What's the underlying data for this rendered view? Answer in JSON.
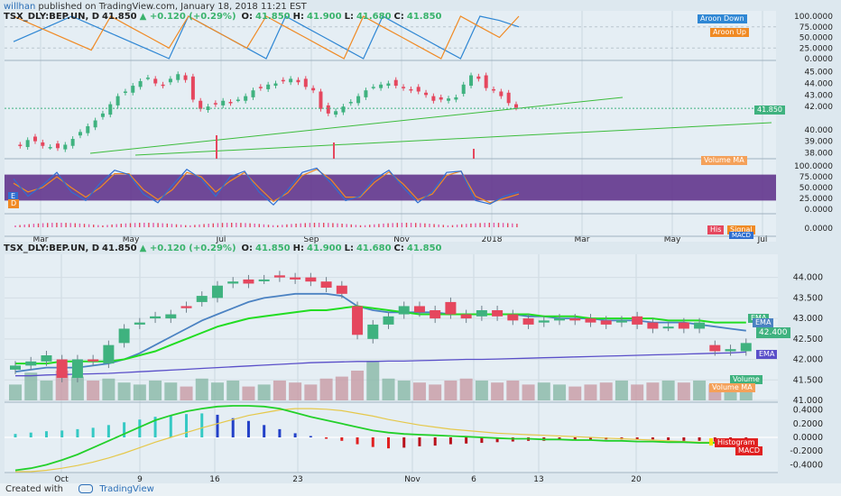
{
  "header": {
    "publisher": "willhan",
    "published_text": "published on TradingView.com, January 18, 2018 11:21 EST"
  },
  "top_panel": {
    "symbol": "TSX_DLY:BEP.UN, D",
    "price": "41.850",
    "change": "+0.120 (+0.29%)",
    "o_label": "O:",
    "o_value": "41.850",
    "h_label": "H:",
    "h_value": "41.900",
    "l_label": "L:",
    "l_value": "41.680",
    "c_label": "C:",
    "c_value": "41.850",
    "tags": {
      "aroon_down": "Aroon Down",
      "aroon_up": "Aroon Up",
      "price_tag": "41.850",
      "volume_ma": "Volume MA",
      "his": "His",
      "signal": "Signal",
      "macd": "MACD"
    },
    "aroon_axis": [
      "100.0000",
      "75.0000",
      "50.0000",
      "25.0000",
      "0.0000"
    ],
    "price_axis": [
      "45.000",
      "44.000",
      "43.000",
      "42.000",
      "40.000",
      "39.000",
      "38.000"
    ],
    "stoch_axis": [
      "100.0000",
      "75.0000",
      "50.0000",
      "25.0000",
      "0.0000"
    ],
    "macd_axis": [
      "0.0000"
    ],
    "x_labels": [
      "Mar",
      "May",
      "Jul",
      "Sep",
      "Nov",
      "2018",
      "Mar",
      "May",
      "Jul"
    ],
    "stoch_left_tags": [
      "E",
      "D"
    ]
  },
  "bottom_panel": {
    "symbol": "TSX_DLY:BEP.UN, D",
    "price": "41.850",
    "change": "+0.120 (+0.29%)",
    "o_label": "O:",
    "o_value": "41.850",
    "h_label": "H:",
    "h_value": "41.900",
    "l_label": "L:",
    "l_value": "41.680",
    "c_label": "C:",
    "c_value": "41.850",
    "price_axis": [
      "44.000",
      "43.500",
      "43.000",
      "42.500",
      "42.000",
      "41.500",
      "41.000"
    ],
    "macd_axis": [
      "0.4000",
      "0.2000",
      "0.0000",
      "-0.2000",
      "-0.4000"
    ],
    "x_labels": [
      "Oct",
      "9",
      "16",
      "23",
      "Nov",
      "6",
      "13",
      "20"
    ],
    "tags": {
      "ema1": "EMA",
      "ema2": "EMA",
      "price_tag": "42.400",
      "ema3": "EMA",
      "volume": "Volume",
      "volume_ma": "Volume MA",
      "histogram": "Histogram",
      "macd": "MACD"
    }
  },
  "footer": {
    "created_with": "Created with",
    "brand": "TradingView"
  },
  "colors": {
    "up": "#3fb27f",
    "down": "#e5475e",
    "aroon_up": "#f08a24",
    "aroon_down": "#2f87d4",
    "ema_green": "#22dd22",
    "ema_blue": "#4b82c2",
    "ema_purple": "#5a4fc9",
    "macd_red": "#e02020",
    "signal_yellow": "#e5c84a",
    "stoch_k": "#2f6fd1",
    "stoch_d": "#f08a24",
    "stoch_band": "#5b2a86"
  },
  "chart_data": [
    {
      "type": "candlestick",
      "title": "TSX_DLY:BEP.UN, D (top, daily ~Jan 2017–Jan 2018)",
      "x_labels": [
        "Mar",
        "May",
        "Jul",
        "Sep",
        "Nov",
        "2018"
      ],
      "price_range": [
        37.8,
        45.6
      ],
      "close_path": [
        38.8,
        38.6,
        39.1,
        39.0,
        38.6,
        38.5,
        38.4,
        38.7,
        39.2,
        39.8,
        40.3,
        40.8,
        41.4,
        42.2,
        42.9,
        43.3,
        43.8,
        44.2,
        44.5,
        44.0,
        43.8,
        44.4,
        44.8,
        44.3,
        42.6,
        41.8,
        42.0,
        42.2,
        42.5,
        42.3,
        42.6,
        42.9,
        43.4,
        43.6,
        43.9,
        44.0,
        44.2,
        44.4,
        44.1,
        43.7,
        43.4,
        41.8,
        41.4,
        41.6,
        42.0,
        42.4,
        42.9,
        43.4,
        43.7,
        43.9,
        44.0,
        43.8,
        43.6,
        43.4,
        43.3,
        43.0,
        42.5,
        42.6,
        42.7,
        42.8,
        43.9,
        44.7,
        44.4,
        43.6,
        43.4,
        42.9,
        42.3,
        41.9
      ]
    },
    {
      "type": "line",
      "title": "Aroon",
      "series": [
        {
          "name": "Aroon Down",
          "values": [
            40,
            60,
            80,
            100,
            80,
            60,
            40,
            20,
            0,
            100,
            75,
            50,
            25,
            0,
            100,
            75,
            50,
            25,
            0,
            100,
            75,
            50,
            25,
            0,
            100,
            90,
            75
          ]
        },
        {
          "name": "Aroon Up",
          "values": [
            100,
            80,
            60,
            40,
            20,
            100,
            75,
            50,
            25,
            100,
            75,
            50,
            25,
            100,
            75,
            50,
            25,
            0,
            100,
            75,
            50,
            25,
            0,
            100,
            75,
            50,
            100
          ]
        }
      ],
      "ylim": [
        0,
        100
      ]
    },
    {
      "type": "line",
      "title": "Stoch",
      "series": [
        {
          "name": "K",
          "values": [
            70,
            30,
            55,
            85,
            40,
            20,
            60,
            90,
            80,
            35,
            15,
            55,
            92,
            70,
            30,
            75,
            88,
            40,
            10,
            45,
            85,
            95,
            60,
            20,
            30,
            70,
            90,
            50,
            15,
            40,
            85,
            88,
            20,
            12,
            30,
            40
          ]
        },
        {
          "name": "D",
          "values": [
            60,
            40,
            50,
            75,
            50,
            28,
            50,
            82,
            82,
            45,
            22,
            45,
            85,
            75,
            40,
            65,
            85,
            50,
            18,
            38,
            78,
            92,
            68,
            28,
            28,
            62,
            86,
            58,
            22,
            35,
            78,
            88,
            30,
            15,
            25,
            35
          ]
        }
      ],
      "ylim": [
        0,
        100
      ]
    },
    {
      "type": "candlestick",
      "title": "TSX_DLY:BEP.UN, D (bottom, Oct–Dec 2017)",
      "x_labels": [
        "Oct",
        "9",
        "16",
        "23",
        "Nov",
        "6",
        "13",
        "20"
      ],
      "price_range": [
        41.0,
        44.3
      ],
      "candles": [
        {
          "o": 41.75,
          "c": 41.85
        },
        {
          "o": 41.85,
          "c": 41.95
        },
        {
          "o": 41.95,
          "c": 42.1
        },
        {
          "o": 42.0,
          "c": 41.55
        },
        {
          "o": 41.55,
          "c": 42.0
        },
        {
          "o": 42.0,
          "c": 41.95
        },
        {
          "o": 41.9,
          "c": 42.35
        },
        {
          "o": 42.4,
          "c": 42.75
        },
        {
          "o": 42.85,
          "c": 42.9
        },
        {
          "o": 43.0,
          "c": 43.05
        },
        {
          "o": 43.0,
          "c": 43.1
        },
        {
          "o": 43.3,
          "c": 43.25
        },
        {
          "o": 43.4,
          "c": 43.55
        },
        {
          "o": 43.5,
          "c": 43.8
        },
        {
          "o": 43.85,
          "c": 43.9
        },
        {
          "o": 43.95,
          "c": 43.85
        },
        {
          "o": 43.95,
          "c": 43.95
        },
        {
          "o": 44.05,
          "c": 44.0
        },
        {
          "o": 44.0,
          "c": 43.95
        },
        {
          "o": 44.0,
          "c": 43.9
        },
        {
          "o": 43.9,
          "c": 43.75
        },
        {
          "o": 43.8,
          "c": 43.6
        },
        {
          "o": 43.3,
          "c": 42.6
        },
        {
          "o": 42.5,
          "c": 42.85
        },
        {
          "o": 42.85,
          "c": 43.05
        },
        {
          "o": 43.1,
          "c": 43.3
        },
        {
          "o": 43.3,
          "c": 43.15
        },
        {
          "o": 43.2,
          "c": 43.0
        },
        {
          "o": 43.4,
          "c": 43.1
        },
        {
          "o": 43.1,
          "c": 43.0
        },
        {
          "o": 43.05,
          "c": 43.2
        },
        {
          "o": 43.2,
          "c": 43.05
        },
        {
          "o": 43.1,
          "c": 42.95
        },
        {
          "o": 43.0,
          "c": 42.85
        },
        {
          "o": 42.9,
          "c": 42.95
        },
        {
          "o": 42.95,
          "c": 43.0
        },
        {
          "o": 43.0,
          "c": 42.95
        },
        {
          "o": 43.0,
          "c": 42.9
        },
        {
          "o": 42.95,
          "c": 42.85
        },
        {
          "o": 42.9,
          "c": 42.95
        },
        {
          "o": 43.05,
          "c": 42.85
        },
        {
          "o": 42.9,
          "c": 42.75
        },
        {
          "o": 42.8,
          "c": 42.8
        },
        {
          "o": 42.9,
          "c": 42.75
        },
        {
          "o": 42.75,
          "c": 42.9
        },
        {
          "o": 42.35,
          "c": 42.2
        },
        {
          "o": 42.2,
          "c": 42.25
        },
        {
          "o": 42.2,
          "c": 42.4
        }
      ],
      "ema_short": [
        41.9,
        41.9,
        41.9,
        41.95,
        41.95,
        41.95,
        41.95,
        42.0,
        42.1,
        42.2,
        42.35,
        42.5,
        42.65,
        42.8,
        42.9,
        43.0,
        43.05,
        43.1,
        43.15,
        43.2,
        43.2,
        43.25,
        43.3,
        43.25,
        43.2,
        43.15,
        43.1,
        43.1,
        43.1,
        43.1,
        43.1,
        43.1,
        43.1,
        43.1,
        43.05,
        43.05,
        43.05,
        43.0,
        43.0,
        43.0,
        43.0,
        43.0,
        42.95,
        42.95,
        42.95,
        42.9,
        42.9,
        42.9
      ],
      "ema_mid": [
        41.7,
        41.75,
        41.8,
        41.8,
        41.8,
        41.85,
        41.9,
        42.0,
        42.15,
        42.35,
        42.55,
        42.75,
        42.95,
        43.1,
        43.25,
        43.4,
        43.5,
        43.55,
        43.6,
        43.6,
        43.6,
        43.55,
        43.3,
        43.2,
        43.15,
        43.15,
        43.15,
        43.15,
        43.1,
        43.1,
        43.1,
        43.1,
        43.1,
        43.05,
        43.05,
        43.0,
        43.0,
        43.0,
        42.95,
        42.95,
        42.95,
        42.9,
        42.9,
        42.9,
        42.85,
        42.8,
        42.75,
        42.7
      ],
      "ema_long": [
        41.6,
        41.6,
        41.62,
        41.63,
        41.64,
        41.65,
        41.66,
        41.68,
        41.7,
        41.72,
        41.74,
        41.76,
        41.78,
        41.8,
        41.82,
        41.84,
        41.86,
        41.88,
        41.9,
        41.92,
        41.93,
        41.94,
        41.95,
        41.95,
        41.96,
        41.96,
        41.97,
        41.98,
        41.99,
        42.0,
        42.0,
        42.01,
        42.02,
        42.03,
        42.04,
        42.05,
        42.06,
        42.07,
        42.08,
        42.09,
        42.1,
        42.11,
        42.12,
        42.13,
        42.14,
        42.15,
        42.16,
        42.18
      ],
      "volume": [
        0.4,
        0.7,
        0.5,
        0.75,
        0.6,
        0.5,
        0.55,
        0.45,
        0.4,
        0.5,
        0.45,
        0.35,
        0.55,
        0.45,
        0.5,
        0.35,
        0.4,
        0.5,
        0.45,
        0.4,
        0.55,
        0.6,
        0.75,
        1.0,
        0.55,
        0.5,
        0.45,
        0.4,
        0.5,
        0.55,
        0.5,
        0.45,
        0.5,
        0.4,
        0.45,
        0.4,
        0.35,
        0.4,
        0.45,
        0.5,
        0.4,
        0.45,
        0.5,
        0.45,
        0.5,
        0.4,
        0.35,
        0.4
      ]
    },
    {
      "type": "bar",
      "title": "MACD",
      "histogram": [
        0.05,
        0.07,
        0.09,
        0.1,
        0.12,
        0.14,
        0.18,
        0.22,
        0.26,
        0.3,
        0.32,
        0.34,
        0.35,
        0.33,
        0.28,
        0.24,
        0.18,
        0.12,
        0.06,
        0.02,
        -0.02,
        -0.05,
        -0.1,
        -0.14,
        -0.16,
        -0.15,
        -0.13,
        -0.12,
        -0.1,
        -0.09,
        -0.08,
        -0.07,
        -0.06,
        -0.05,
        -0.05,
        -0.04,
        -0.04,
        -0.04,
        -0.03,
        -0.03,
        -0.03,
        -0.03,
        -0.04,
        -0.05,
        -0.05,
        -0.06,
        -0.06,
        -0.05
      ],
      "macd": [
        -0.48,
        -0.45,
        -0.4,
        -0.33,
        -0.25,
        -0.15,
        -0.05,
        0.05,
        0.15,
        0.25,
        0.32,
        0.38,
        0.42,
        0.45,
        0.46,
        0.46,
        0.45,
        0.42,
        0.36,
        0.3,
        0.25,
        0.2,
        0.15,
        0.1,
        0.07,
        0.05,
        0.04,
        0.03,
        0.02,
        0.01,
        0.0,
        -0.01,
        -0.02,
        -0.02,
        -0.03,
        -0.03,
        -0.04,
        -0.04,
        -0.05,
        -0.05,
        -0.06,
        -0.06,
        -0.07,
        -0.07,
        -0.08,
        -0.08,
        -0.09,
        -0.09
      ],
      "signal": [
        -0.5,
        -0.5,
        -0.48,
        -0.45,
        -0.41,
        -0.36,
        -0.3,
        -0.23,
        -0.15,
        -0.07,
        0.0,
        0.07,
        0.14,
        0.2,
        0.26,
        0.32,
        0.36,
        0.4,
        0.42,
        0.42,
        0.41,
        0.39,
        0.35,
        0.31,
        0.26,
        0.22,
        0.18,
        0.15,
        0.12,
        0.1,
        0.08,
        0.06,
        0.05,
        0.04,
        0.03,
        0.02,
        0.01,
        0.0,
        -0.01,
        -0.02,
        -0.03,
        -0.04,
        -0.05,
        -0.06,
        -0.07,
        -0.07,
        -0.08,
        -0.08
      ],
      "ylim": [
        -0.5,
        0.5
      ]
    }
  ]
}
